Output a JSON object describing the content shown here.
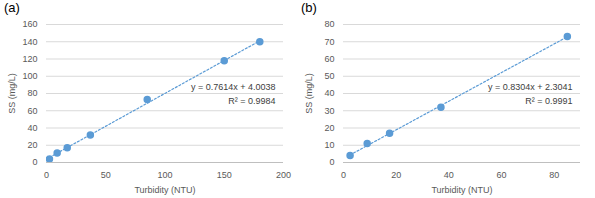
{
  "chart_data": [
    {
      "type": "scatter",
      "title": "(a)",
      "x_label": "Turbidity (NTU)",
      "y_label": "SS (mg/L)",
      "x": [
        2.5,
        9,
        17.5,
        37,
        85,
        150,
        180
      ],
      "values": [
        4,
        11,
        17,
        32,
        73,
        118,
        140
      ],
      "color": "#5b9bd5",
      "marker": "circle",
      "xlim": [
        0,
        200
      ],
      "xticks": [
        0,
        50,
        100,
        150,
        200
      ],
      "ylim": [
        0,
        160
      ],
      "yticks": [
        0,
        20,
        40,
        60,
        80,
        100,
        120,
        140,
        160
      ],
      "grid": true,
      "trendline": {
        "slope": 0.7614,
        "intercept": 4.0038,
        "r_squared": 0.9984,
        "equation": "y = 0.7614x + 4.0038",
        "r2_label": "R² = 0.9984",
        "line_style": "dotted"
      }
    },
    {
      "type": "scatter",
      "title": "(b)",
      "x_label": "Turbidity (NTU)",
      "y_label": "SS (mg/L)",
      "x": [
        2.5,
        9,
        17.5,
        37,
        85
      ],
      "values": [
        4,
        11,
        17,
        32,
        73
      ],
      "color": "#5b9bd5",
      "marker": "circle",
      "xlim": [
        0,
        90
      ],
      "xticks": [
        0,
        20,
        40,
        60,
        80
      ],
      "ylim": [
        0,
        80
      ],
      "yticks": [
        0,
        10,
        20,
        30,
        40,
        50,
        60,
        70,
        80
      ],
      "grid": true,
      "trendline": {
        "slope": 0.8304,
        "intercept": 2.3041,
        "r_squared": 0.9991,
        "equation": "y = 0.8304x + 2.3041",
        "r2_label": "R² = 0.9991",
        "line_style": "dotted"
      }
    }
  ]
}
